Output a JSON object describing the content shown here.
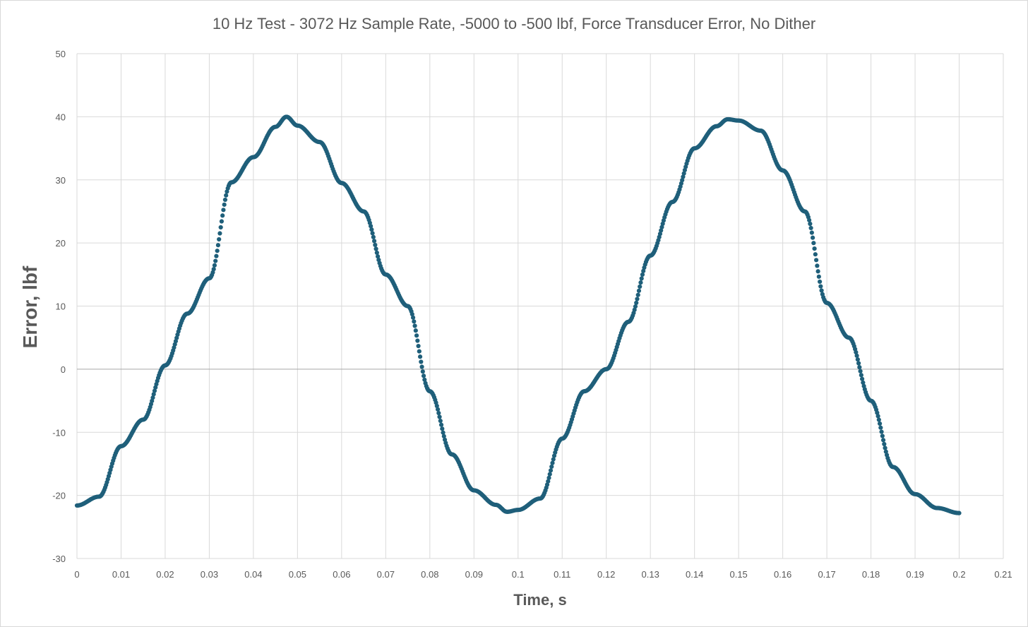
{
  "chart_data": {
    "type": "scatter",
    "title": "10 Hz Test - 3072 Hz Sample Rate, -5000 to -500 lbf, Force Transducer Error, No Dither",
    "xlabel": "Time, s",
    "ylabel": "Error, lbf",
    "xlim": [
      0,
      0.21
    ],
    "ylim": [
      -30,
      50
    ],
    "x_ticks": [
      "0",
      "0.01",
      "0.02",
      "0.03",
      "0.04",
      "0.05",
      "0.06",
      "0.07",
      "0.08",
      "0.09",
      "0.1",
      "0.11",
      "0.12",
      "0.13",
      "0.14",
      "0.15",
      "0.16",
      "0.17",
      "0.18",
      "0.19",
      "0.2",
      "0.21"
    ],
    "y_ticks": [
      "50",
      "40",
      "30",
      "20",
      "10",
      "0",
      "-10",
      "-20",
      "-30"
    ],
    "grid": true,
    "legend": "none",
    "marker_color": "#1f5f7a",
    "series": [
      {
        "x": [
          0.0,
          0.005,
          0.01,
          0.015,
          0.02,
          0.025,
          0.03,
          0.035,
          0.04,
          0.045,
          0.0475,
          0.05,
          0.055,
          0.06,
          0.065,
          0.07,
          0.075,
          0.08,
          0.085,
          0.09,
          0.095,
          0.0975,
          0.1,
          0.105,
          0.11,
          0.115,
          0.12,
          0.125,
          0.13,
          0.135,
          0.14,
          0.145,
          0.1475,
          0.15,
          0.155,
          0.16,
          0.165,
          0.17,
          0.175,
          0.18,
          0.185,
          0.19,
          0.195,
          0.2
        ],
        "y": [
          -21.6,
          -20.2,
          -12.2,
          -8.0,
          0.6,
          8.8,
          14.4,
          29.6,
          33.6,
          38.4,
          40.0,
          38.6,
          36.0,
          29.5,
          25.0,
          15.0,
          10.0,
          -3.5,
          -13.5,
          -19.2,
          -21.5,
          -22.6,
          -22.3,
          -20.5,
          -11.0,
          -3.5,
          0.0,
          7.5,
          18.0,
          26.5,
          35.0,
          38.5,
          39.6,
          39.4,
          37.8,
          31.5,
          25.0,
          10.5,
          5.0,
          -5.0,
          -15.5,
          -19.8,
          -22.0,
          -22.8
        ]
      }
    ]
  }
}
